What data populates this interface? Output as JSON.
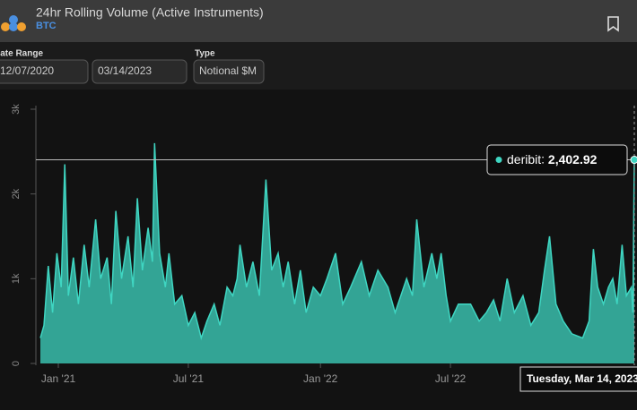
{
  "header": {
    "title": "24hr Rolling Volume (Active Instruments)",
    "subtitle": "BTC"
  },
  "filters": {
    "date_range_label": "Date Range",
    "start": "12/07/2020",
    "end": "03/14/2023",
    "type_label": "Type",
    "type": "Notional $M"
  },
  "chart_data": {
    "type": "area",
    "x": [
      "2020-12-07",
      "2020-12-12",
      "2020-12-18",
      "2020-12-24",
      "2020-12-30",
      "2021-01-05",
      "2021-01-10",
      "2021-01-15",
      "2021-01-22",
      "2021-01-29",
      "2021-02-06",
      "2021-02-13",
      "2021-02-22",
      "2021-03-01",
      "2021-03-10",
      "2021-03-16",
      "2021-03-22",
      "2021-03-30",
      "2021-04-08",
      "2021-04-15",
      "2021-04-21",
      "2021-04-28",
      "2021-05-06",
      "2021-05-12",
      "2021-05-15",
      "2021-05-22",
      "2021-05-30",
      "2021-06-04",
      "2021-06-12",
      "2021-06-22",
      "2021-07-01",
      "2021-07-10",
      "2021-07-19",
      "2021-07-27",
      "2021-08-06",
      "2021-08-14",
      "2021-08-24",
      "2021-09-01",
      "2021-09-07",
      "2021-09-11",
      "2021-09-20",
      "2021-09-29",
      "2021-10-08",
      "2021-10-17",
      "2021-10-25",
      "2021-11-03",
      "2021-11-10",
      "2021-11-17",
      "2021-11-26",
      "2021-12-04",
      "2021-12-12",
      "2021-12-22",
      "2022-01-01",
      "2022-01-10",
      "2022-01-22",
      "2022-02-01",
      "2022-02-12",
      "2022-02-27",
      "2022-03-10",
      "2022-03-22",
      "2022-04-05",
      "2022-04-15",
      "2022-05-01",
      "2022-05-09",
      "2022-05-15",
      "2022-05-25",
      "2022-06-05",
      "2022-06-12",
      "2022-06-18",
      "2022-06-25",
      "2022-07-01",
      "2022-07-12",
      "2022-07-29",
      "2022-08-10",
      "2022-08-20",
      "2022-08-30",
      "2022-09-08",
      "2022-09-18",
      "2022-09-28",
      "2022-10-10",
      "2022-10-21",
      "2022-11-01",
      "2022-11-09",
      "2022-11-16",
      "2022-11-25",
      "2022-12-05",
      "2022-12-17",
      "2023-01-01",
      "2023-01-10",
      "2023-01-16",
      "2023-01-22",
      "2023-01-30",
      "2023-02-06",
      "2023-02-12",
      "2023-02-18",
      "2023-02-25",
      "2023-03-03",
      "2023-03-10",
      "2023-03-12",
      "2023-03-14"
    ],
    "series": [
      {
        "name": "deribit",
        "color": "#3fd6c2",
        "values": [
          300,
          450,
          1150,
          600,
          1300,
          900,
          2350,
          800,
          1250,
          700,
          1400,
          900,
          1700,
          1000,
          1250,
          700,
          1800,
          1000,
          1500,
          900,
          1950,
          1100,
          1600,
          1200,
          2600,
          1300,
          900,
          1300,
          700,
          800,
          450,
          600,
          300,
          500,
          700,
          450,
          900,
          800,
          1000,
          1400,
          900,
          1200,
          800,
          2170,
          1100,
          1300,
          900,
          1200,
          700,
          1100,
          600,
          900,
          800,
          1000,
          1300,
          700,
          900,
          1200,
          800,
          1100,
          900,
          600,
          1000,
          800,
          1700,
          900,
          1300,
          1000,
          1300,
          800,
          500,
          700,
          700,
          500,
          600,
          750,
          500,
          1000,
          600,
          800,
          450,
          600,
          1100,
          1500,
          700,
          500,
          350,
          300,
          500,
          1350,
          900,
          700,
          900,
          1000,
          700,
          1400,
          800,
          900,
          600,
          2402.92
        ]
      }
    ],
    "xlim": [
      "2020-12-07",
      "2023-03-14"
    ],
    "xticks": [
      {
        "value": "2021-01-01",
        "label": "Jan '21"
      },
      {
        "value": "2021-07-01",
        "label": "Jul '21"
      },
      {
        "value": "2022-01-01",
        "label": "Jan '22"
      },
      {
        "value": "2022-07-01",
        "label": "Jul '22"
      }
    ],
    "ylim": [
      0,
      3000
    ],
    "yticks": [
      0,
      {
        "value": 1000,
        "label": "1k"
      },
      {
        "value": 2000,
        "label": "2k"
      },
      {
        "value": 3000,
        "label": "3k"
      }
    ],
    "grid": false,
    "tooltip": {
      "value_label": "2,402.92",
      "date": "Tuesday, Mar 14, 2023"
    }
  }
}
